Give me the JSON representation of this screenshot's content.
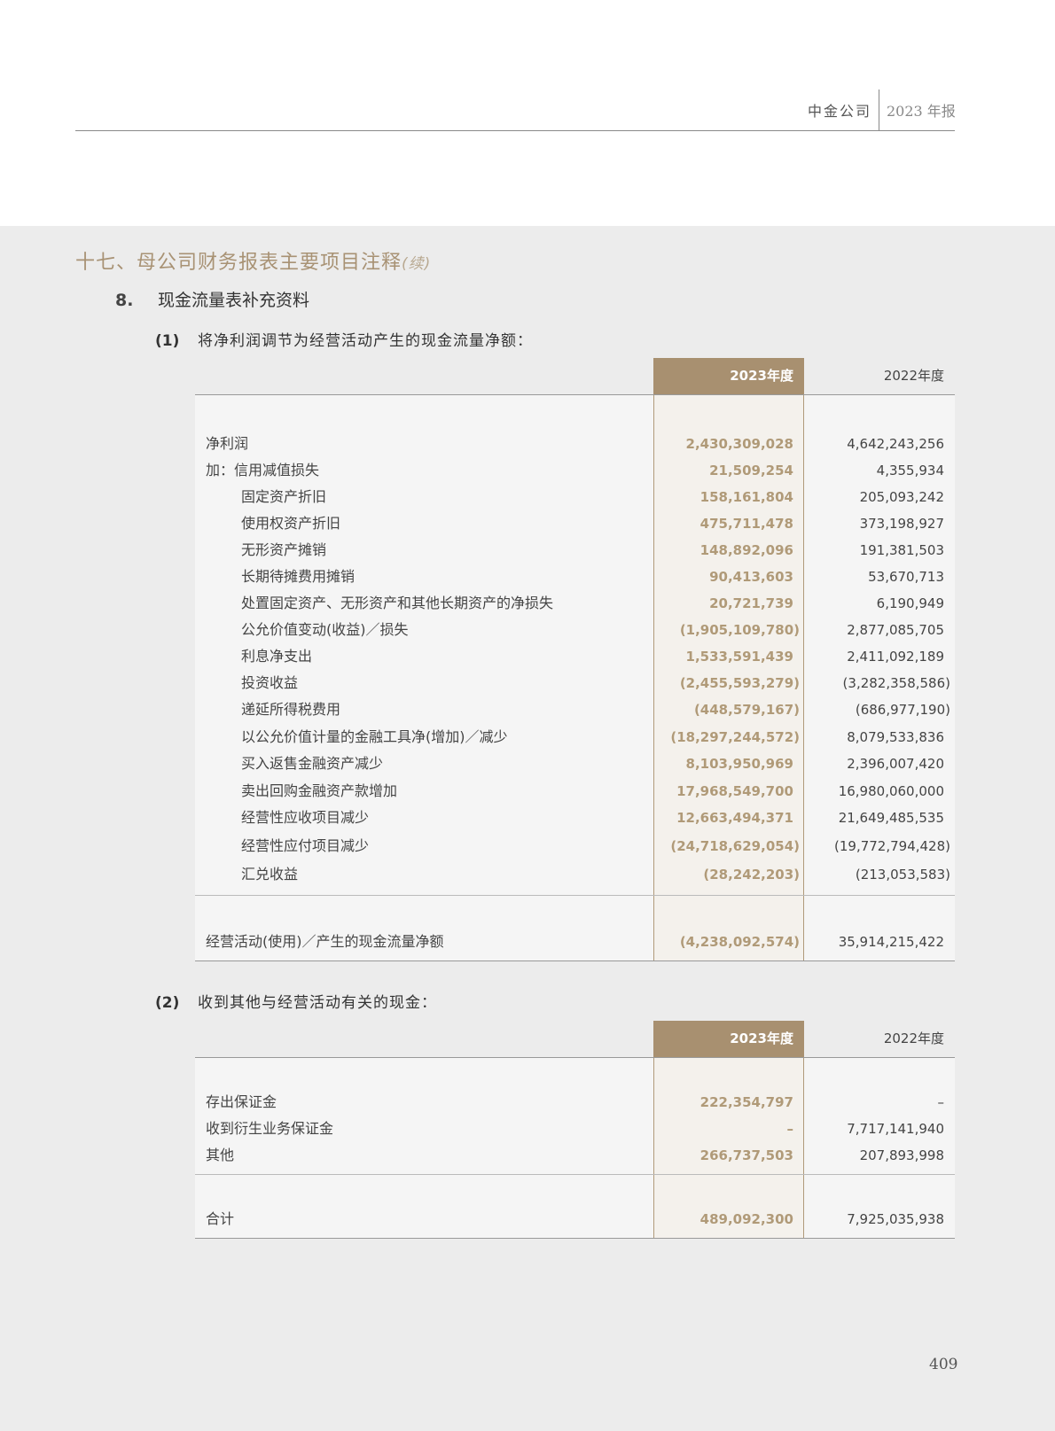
{
  "header": {
    "company": "中金公司",
    "report": "2023 年报"
  },
  "section": {
    "title": "十七、母公司财务报表主要项目注释",
    "continued": "(续)"
  },
  "subsection": {
    "number": "8.",
    "title": "现金流量表补充资料"
  },
  "table1": {
    "number": "(1)",
    "title": "将净利润调节为经营活动产生的现金流量净额：",
    "columns": [
      "2023年度",
      "2022年度"
    ],
    "rows": [
      {
        "label": "净利润",
        "level": 0,
        "y2023": "2,430,309,028",
        "y2022": "4,642,243,256"
      },
      {
        "label": "加：信用减值损失",
        "level": 0,
        "y2023": "21,509,254",
        "y2022": "4,355,934"
      },
      {
        "label": "固定资产折旧",
        "level": 1,
        "y2023": "158,161,804",
        "y2022": "205,093,242"
      },
      {
        "label": "使用权资产折旧",
        "level": 1,
        "y2023": "475,711,478",
        "y2022": "373,198,927"
      },
      {
        "label": "无形资产摊销",
        "level": 1,
        "y2023": "148,892,096",
        "y2022": "191,381,503"
      },
      {
        "label": "长期待摊费用摊销",
        "level": 1,
        "y2023": "90,413,603",
        "y2022": "53,670,713"
      },
      {
        "label": "处置固定资产、无形资产和其他长期资产的净损失",
        "level": 1,
        "y2023": "20,721,739",
        "y2022": "6,190,949"
      },
      {
        "label": "公允价值变动(收益)／损失",
        "level": 1,
        "y2023": "(1,905,109,780)",
        "y2022": "2,877,085,705"
      },
      {
        "label": "利息净支出",
        "level": 1,
        "y2023": "1,533,591,439",
        "y2022": "2,411,092,189"
      },
      {
        "label": "投资收益",
        "level": 1,
        "y2023": "(2,455,593,279)",
        "y2022": "(3,282,358,586)"
      },
      {
        "label": "递延所得税费用",
        "level": 1,
        "y2023": "(448,579,167)",
        "y2022": "(686,977,190)"
      },
      {
        "label": "以公允价值计量的金融工具净(增加)／减少",
        "level": 1,
        "y2023": "(18,297,244,572)",
        "y2022": "8,079,533,836"
      },
      {
        "label": "买入返售金融资产减少",
        "level": 1,
        "y2023": "8,103,950,969",
        "y2022": "2,396,007,420"
      },
      {
        "label": "卖出回购金融资产款增加",
        "level": 1,
        "y2023": "17,968,549,700",
        "y2022": "16,980,060,000"
      },
      {
        "label": "经营性应收项目减少",
        "level": 1,
        "y2023": "12,663,494,371",
        "y2022": "21,649,485,535"
      },
      {
        "label": "经营性应付项目减少",
        "level": 1,
        "y2023": "(24,718,629,054)",
        "y2022": "(19,772,794,428)"
      },
      {
        "label": "汇兑收益",
        "level": 1,
        "y2023": "(28,242,203)",
        "y2022": "(213,053,583)"
      }
    ],
    "total": {
      "label": "经营活动(使用)／产生的现金流量净额",
      "y2023": "(4,238,092,574)",
      "y2022": "35,914,215,422"
    }
  },
  "table2": {
    "number": "(2)",
    "title": "收到其他与经营活动有关的现金：",
    "columns": [
      "2023年度",
      "2022年度"
    ],
    "rows": [
      {
        "label": "存出保证金",
        "level": 0,
        "y2023": "222,354,797",
        "y2022": "–"
      },
      {
        "label": "收到衍生业务保证金",
        "level": 0,
        "y2023": "–",
        "y2022": "7,717,141,940"
      },
      {
        "label": "其他",
        "level": 0,
        "y2023": "266,737,503",
        "y2022": "207,893,998"
      }
    ],
    "total": {
      "label": "合计",
      "y2023": "489,092,300",
      "y2022": "7,925,035,938"
    }
  },
  "page_number": "409",
  "colors": {
    "accent": "#a89070",
    "accent_text": "#b09a78",
    "background": "#ececec"
  }
}
